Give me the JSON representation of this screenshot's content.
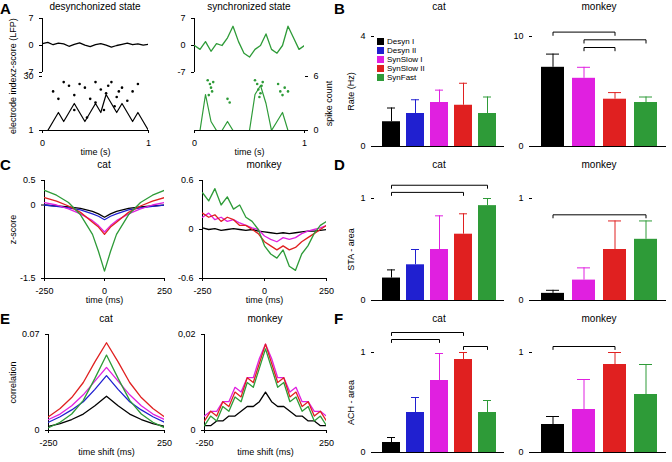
{
  "chart_data": [
    {
      "panel": "A",
      "type": "line",
      "title": "desynchonized state",
      "y_label": "z-score (LFP)",
      "x": [
        0,
        0.05,
        0.1,
        0.15,
        0.2,
        0.25,
        0.3,
        0.35,
        0.4,
        0.45,
        0.5,
        0.55,
        0.6,
        0.65,
        0.7,
        0.75,
        0.8,
        0.85,
        0.9,
        0.95,
        1
      ],
      "series": [
        {
          "color": "#000000",
          "values": [
            0.5,
            0.8,
            0.2,
            0.6,
            0.4,
            -0.2,
            0.3,
            0.7,
            0.1,
            -0.3,
            0.2,
            0.5,
            0.1,
            -0.4,
            0,
            0.3,
            0.6,
            0.2,
            0.4,
            0.1,
            0.3
          ]
        }
      ],
      "xlim": [
        0,
        1
      ],
      "ylim": [
        -7,
        7
      ],
      "yticks": [
        -7,
        0,
        7
      ]
    },
    {
      "panel": "A",
      "type": "line",
      "title": "synchronized state",
      "x": [
        0,
        0.05,
        0.1,
        0.15,
        0.2,
        0.25,
        0.3,
        0.35,
        0.4,
        0.45,
        0.5,
        0.55,
        0.6,
        0.65,
        0.7,
        0.75,
        0.8,
        0.85,
        0.9,
        0.95,
        1
      ],
      "series": [
        {
          "color": "#2e9b38",
          "values": [
            0,
            -1,
            1,
            -1.5,
            0.5,
            0,
            2,
            5,
            1,
            -2,
            -3,
            -1,
            0,
            3,
            -1,
            -2,
            0,
            5,
            2,
            -1,
            0
          ]
        }
      ],
      "xlim": [
        0,
        1
      ],
      "ylim": [
        -7,
        7
      ],
      "yticks": [
        -7,
        0,
        7
      ]
    },
    {
      "panel": "A",
      "type": "scatter",
      "x_label": "time (s)",
      "y_label": "electrode index",
      "color": "#000000",
      "x": [
        0.1,
        0.2,
        0.25,
        0.3,
        0.35,
        0.4,
        0.45,
        0.5,
        0.5,
        0.55,
        0.6,
        0.62,
        0.65,
        0.7,
        0.75,
        0.8,
        0.85,
        0.9,
        0.15,
        0.58,
        0.68,
        0.42,
        0.72,
        0.3
      ],
      "values": [
        22,
        27,
        25,
        20,
        26,
        24,
        18,
        27,
        16,
        23,
        21,
        25,
        27,
        19,
        24,
        17,
        22,
        26,
        18,
        12,
        14,
        8,
        22,
        12
      ],
      "series": [
        {
          "type": "line",
          "axis": "y2",
          "color": "#000000",
          "x": [
            0,
            0.05,
            0.1,
            0.15,
            0.2,
            0.25,
            0.3,
            0.35,
            0.4,
            0.45,
            0.5,
            0.55,
            0.6,
            0.65,
            0.7,
            0.75,
            0.8,
            0.85,
            0.9,
            0.95,
            1
          ],
          "values": [
            0,
            0,
            1,
            2,
            1,
            2,
            3,
            2,
            1,
            2,
            3,
            2,
            4,
            3,
            2,
            3,
            2,
            1,
            2,
            1,
            0
          ]
        }
      ],
      "xlim": [
        0,
        1
      ],
      "xticks": [
        0,
        1
      ],
      "ylim": [
        1,
        30
      ],
      "yticks": [
        1,
        30
      ],
      "y2lim": [
        0,
        6
      ]
    },
    {
      "panel": "A",
      "type": "scatter",
      "x_label": "time (s)",
      "y2_label": "spike count",
      "color": "#2e9b38",
      "x": [
        0.12,
        0.14,
        0.15,
        0.16,
        0.13,
        0.17,
        0.3,
        0.32,
        0.55,
        0.57,
        0.58,
        0.6,
        0.62,
        0.59,
        0.61,
        0.78,
        0.8,
        0.82,
        0.76,
        0.85
      ],
      "values": [
        28,
        26,
        24,
        22,
        20,
        27,
        18,
        16,
        28,
        26,
        23,
        21,
        27,
        19,
        25,
        22,
        20,
        24,
        26,
        22
      ],
      "series": [
        {
          "type": "line",
          "axis": "y2",
          "color": "#2e9b38",
          "x": [
            0,
            0.05,
            0.1,
            0.15,
            0.2,
            0.25,
            0.3,
            0.35,
            0.4,
            0.45,
            0.5,
            0.55,
            0.6,
            0.65,
            0.7,
            0.75,
            0.8,
            0.85,
            0.9,
            0.95,
            1
          ],
          "values": [
            0,
            0,
            4,
            1,
            0,
            0,
            1,
            0,
            0,
            0,
            0,
            4,
            5,
            3,
            0,
            1,
            2,
            0,
            0,
            0,
            0
          ]
        }
      ],
      "xlim": [
        0,
        1
      ],
      "xticks": [
        0,
        1
      ],
      "ylim": [
        1,
        30
      ],
      "y2lim": [
        0,
        6
      ],
      "y2ticks": [
        0,
        6
      ]
    },
    {
      "panel": "B",
      "type": "bar",
      "title": "cat",
      "y_label": "Rate (Hz)",
      "categories": [
        "Desyn I",
        "Desyn II",
        "SynSlow I",
        "SynSlow II",
        "SynFast"
      ],
      "colors": [
        "#000000",
        "#2020d0",
        "#e020e0",
        "#e02020",
        "#2e9b38"
      ],
      "values": [
        0.9,
        1.2,
        1.6,
        1.5,
        1.2
      ],
      "errors": [
        0.5,
        0.5,
        0.45,
        0.8,
        0.6
      ],
      "ylim": [
        0,
        4
      ],
      "yticks": [
        0,
        4
      ],
      "legend": "top-left",
      "tick_labels": "y",
      "brackets": []
    },
    {
      "panel": "B",
      "type": "bar",
      "title": "monkey",
      "categories": [
        "Desyn I",
        "SynSlow I",
        "SynSlow II",
        "SynFast"
      ],
      "colors": [
        "#000000",
        "#e020e0",
        "#e02020",
        "#2e9b38"
      ],
      "values": [
        7.2,
        6.2,
        4.3,
        4.0
      ],
      "errors": [
        1.2,
        1.0,
        0.6,
        0.5
      ],
      "ylim": [
        0,
        10
      ],
      "yticks": [
        0,
        10
      ],
      "tick_labels": "y",
      "brackets": [
        [
          "SynSlow I",
          "SynSlow II"
        ],
        [
          "SynSlow I",
          "SynFast"
        ],
        [
          "Desyn I",
          "SynSlow II"
        ]
      ]
    },
    {
      "panel": "C",
      "type": "line",
      "title": "cat",
      "x_label": "time (ms)",
      "y_label": "z-score",
      "x": [
        -250,
        -200,
        -150,
        -100,
        -50,
        -25,
        0,
        25,
        50,
        100,
        150,
        200,
        250
      ],
      "series": [
        {
          "color": "#000000",
          "values": [
            0,
            -0.02,
            -0.04,
            -0.07,
            -0.13,
            -0.18,
            -0.25,
            -0.18,
            -0.13,
            -0.07,
            -0.04,
            -0.02,
            0
          ]
        },
        {
          "color": "#2020d0",
          "values": [
            0,
            -0.03,
            -0.06,
            -0.1,
            -0.18,
            -0.23,
            -0.3,
            -0.23,
            -0.18,
            -0.1,
            -0.06,
            -0.03,
            0
          ]
        },
        {
          "color": "#e020e0",
          "values": [
            0.05,
            0,
            -0.08,
            -0.18,
            -0.32,
            -0.42,
            -0.55,
            -0.42,
            -0.32,
            -0.18,
            -0.08,
            0,
            0.05
          ]
        },
        {
          "color": "#e02020",
          "values": [
            0.15,
            0.08,
            -0.02,
            -0.15,
            -0.35,
            -0.45,
            -0.6,
            -0.45,
            -0.35,
            -0.15,
            -0.02,
            0.08,
            0.15
          ]
        },
        {
          "color": "#2e9b38",
          "values": [
            0.3,
            0.2,
            0.05,
            -0.2,
            -0.6,
            -0.95,
            -1.35,
            -0.95,
            -0.6,
            -0.2,
            0.05,
            0.2,
            0.3
          ]
        }
      ],
      "xlim": [
        -250,
        250
      ],
      "xticks": [
        -250,
        0,
        250
      ],
      "ylim": [
        -1.5,
        0.5
      ],
      "yticks": [
        -1.5,
        0,
        0.5
      ]
    },
    {
      "panel": "C",
      "type": "line",
      "title": "monkey",
      "x_label": "time (ms)",
      "x": [
        -250,
        -225,
        -200,
        -175,
        -150,
        -125,
        -100,
        -75,
        -50,
        -25,
        0,
        25,
        50,
        75,
        100,
        125,
        150,
        175,
        200,
        225,
        250
      ],
      "series": [
        {
          "color": "#000000",
          "values": [
            0.02,
            0,
            0.01,
            -0.01,
            0,
            0.01,
            0,
            -0.01,
            0,
            -0.02,
            -0.03,
            -0.04,
            -0.05,
            -0.04,
            -0.05,
            -0.04,
            -0.03,
            -0.02,
            -0.02,
            -0.01,
            0
          ]
        },
        {
          "color": "#e020e0",
          "values": [
            0.15,
            0.2,
            0.12,
            0.15,
            0.1,
            0.12,
            0.08,
            0.05,
            0.02,
            0,
            -0.08,
            -0.12,
            -0.15,
            -0.1,
            -0.12,
            -0.1,
            -0.05,
            -0.02,
            0,
            0.02,
            0.05
          ]
        },
        {
          "color": "#e02020",
          "values": [
            0.2,
            0.15,
            0.18,
            0.1,
            0.15,
            0.12,
            0.05,
            0.05,
            0,
            -0.05,
            -0.15,
            -0.2,
            -0.25,
            -0.2,
            -0.25,
            -0.22,
            -0.15,
            -0.1,
            -0.05,
            0,
            0.05
          ]
        },
        {
          "color": "#2e9b38",
          "values": [
            0.45,
            0.35,
            0.5,
            0.3,
            0.4,
            0.25,
            0.3,
            0.15,
            0.1,
            0,
            -0.2,
            -0.3,
            -0.35,
            -0.25,
            -0.45,
            -0.5,
            -0.3,
            -0.2,
            -0.05,
            0.05,
            0.1
          ]
        }
      ],
      "xlim": [
        -250,
        250
      ],
      "xticks": [
        -250,
        0,
        250
      ],
      "ylim": [
        -0.6,
        0.6
      ],
      "yticks": [
        -0.6,
        0,
        0.6
      ]
    },
    {
      "panel": "D",
      "type": "bar",
      "title": "cat",
      "y_label": "STA - area",
      "categories": [
        "Desyn I",
        "Desyn II",
        "SynSlow I",
        "SynSlow II",
        "SynFast"
      ],
      "colors": [
        "#000000",
        "#2020d0",
        "#e020e0",
        "#e02020",
        "#2e9b38"
      ],
      "values": [
        0.22,
        0.35,
        0.5,
        0.65,
        0.93
      ],
      "errors": [
        0.08,
        0.15,
        0.33,
        0.2,
        0.07
      ],
      "ylim": [
        0,
        1
      ],
      "yticks": [
        0,
        1
      ],
      "tick_labels": "y",
      "brackets": [
        [
          "Desyn I",
          "SynSlow II"
        ],
        [
          "Desyn I",
          "SynFast"
        ]
      ]
    },
    {
      "panel": "D",
      "type": "bar",
      "title": "monkey",
      "categories": [
        "Desyn I",
        "SynSlow I",
        "SynSlow II",
        "SynFast"
      ],
      "colors": [
        "#000000",
        "#e020e0",
        "#e02020",
        "#2e9b38"
      ],
      "values": [
        0.07,
        0.2,
        0.5,
        0.6
      ],
      "errors": [
        0.03,
        0.12,
        0.28,
        0.18
      ],
      "ylim": [
        0,
        1
      ],
      "yticks": [
        0,
        1
      ],
      "tick_labels": "y",
      "brackets": [
        [
          "Desyn I",
          "SynFast"
        ]
      ]
    },
    {
      "panel": "E",
      "type": "line",
      "title": "cat",
      "x_label": "time shift (ms)",
      "y_label": "correlation",
      "x": [
        -250,
        -200,
        -150,
        -100,
        -50,
        0,
        50,
        100,
        150,
        200,
        250
      ],
      "series": [
        {
          "color": "#000000",
          "values": [
            0.003,
            0.005,
            0.008,
            0.012,
            0.018,
            0.025,
            0.018,
            0.012,
            0.008,
            0.005,
            0.003
          ]
        },
        {
          "color": "#2020d0",
          "values": [
            0.006,
            0.01,
            0.015,
            0.021,
            0.03,
            0.04,
            0.03,
            0.021,
            0.015,
            0.01,
            0.006
          ]
        },
        {
          "color": "#e020e0",
          "values": [
            0.008,
            0.012,
            0.018,
            0.026,
            0.036,
            0.046,
            0.036,
            0.026,
            0.018,
            0.012,
            0.008
          ]
        },
        {
          "color": "#e02020",
          "values": [
            0.01,
            0.016,
            0.024,
            0.035,
            0.05,
            0.064,
            0.05,
            0.035,
            0.024,
            0.016,
            0.01
          ]
        },
        {
          "color": "#2e9b38",
          "values": [
            0.002,
            0.006,
            0.012,
            0.022,
            0.038,
            0.055,
            0.038,
            0.022,
            0.012,
            0.006,
            0.002
          ]
        }
      ],
      "xlim": [
        -250,
        250
      ],
      "xticks": [
        -250,
        250
      ],
      "ylim": [
        0,
        0.07
      ],
      "yticks": [
        0,
        0.07
      ]
    },
    {
      "panel": "E",
      "type": "line",
      "title": "monkey",
      "x_label": "time shift (ms)",
      "x": [
        -250,
        -225,
        -200,
        -175,
        -150,
        -125,
        -100,
        -75,
        -50,
        -25,
        0,
        25,
        50,
        75,
        100,
        125,
        150,
        175,
        200,
        225,
        250
      ],
      "series": [
        {
          "color": "#000000",
          "values": [
            0.001,
            0.001,
            0.002,
            0.002,
            0.003,
            0.003,
            0.004,
            0.005,
            0.005,
            0.006,
            0.008,
            0.006,
            0.005,
            0.005,
            0.004,
            0.003,
            0.003,
            0.002,
            0.002,
            0.001,
            0.001
          ]
        },
        {
          "color": "#e020e0",
          "values": [
            0.003,
            0.004,
            0.004,
            0.006,
            0.006,
            0.009,
            0.008,
            0.011,
            0.011,
            0.015,
            0.018,
            0.015,
            0.011,
            0.011,
            0.008,
            0.009,
            0.006,
            0.006,
            0.004,
            0.004,
            0.003
          ]
        },
        {
          "color": "#e02020",
          "values": [
            0.002,
            0.004,
            0.003,
            0.006,
            0.005,
            0.008,
            0.007,
            0.011,
            0.01,
            0.014,
            0.018,
            0.014,
            0.01,
            0.011,
            0.007,
            0.008,
            0.005,
            0.006,
            0.003,
            0.004,
            0.002
          ]
        },
        {
          "color": "#2e9b38",
          "values": [
            0.001,
            0.003,
            0.002,
            0.005,
            0.004,
            0.007,
            0.006,
            0.01,
            0.009,
            0.013,
            0.017,
            0.013,
            0.009,
            0.01,
            0.006,
            0.007,
            0.004,
            0.005,
            0.002,
            0.003,
            0.001
          ]
        }
      ],
      "xlim": [
        -250,
        250
      ],
      "xticks": [
        -250,
        250
      ],
      "ylim": [
        0,
        0.02
      ],
      "yticks": [
        0,
        {
          "value": 0.02,
          "label": "0,02"
        }
      ]
    },
    {
      "panel": "F",
      "type": "bar",
      "title": "cat",
      "y_label": "ACH - area",
      "categories": [
        "Desyn I",
        "Desyn II",
        "SynSlow I",
        "SynSlow II",
        "SynFast"
      ],
      "colors": [
        "#000000",
        "#2020d0",
        "#e020e0",
        "#e02020",
        "#2e9b38"
      ],
      "values": [
        0.1,
        0.4,
        0.72,
        0.93,
        0.4
      ],
      "errors": [
        0.05,
        0.15,
        0.27,
        0.07,
        0.12
      ],
      "ylim": [
        0,
        1
      ],
      "yticks": [
        0,
        1
      ],
      "tick_labels": "y",
      "brackets": [
        [
          "SynSlow II",
          "SynFast"
        ],
        [
          "Desyn I",
          "SynSlow I"
        ],
        [
          "Desyn I",
          "SynSlow II"
        ]
      ]
    },
    {
      "panel": "F",
      "type": "bar",
      "title": "monkey",
      "categories": [
        "Desyn I",
        "SynSlow I",
        "SynSlow II",
        "SynFast"
      ],
      "colors": [
        "#000000",
        "#e020e0",
        "#e02020",
        "#2e9b38"
      ],
      "values": [
        0.28,
        0.43,
        0.88,
        0.58
      ],
      "errors": [
        0.08,
        0.3,
        0.12,
        0.3
      ],
      "ylim": [
        0,
        1
      ],
      "yticks": [
        0,
        1
      ],
      "tick_labels": "y",
      "brackets": [
        [
          "Desyn I",
          "SynSlow II"
        ]
      ]
    }
  ]
}
